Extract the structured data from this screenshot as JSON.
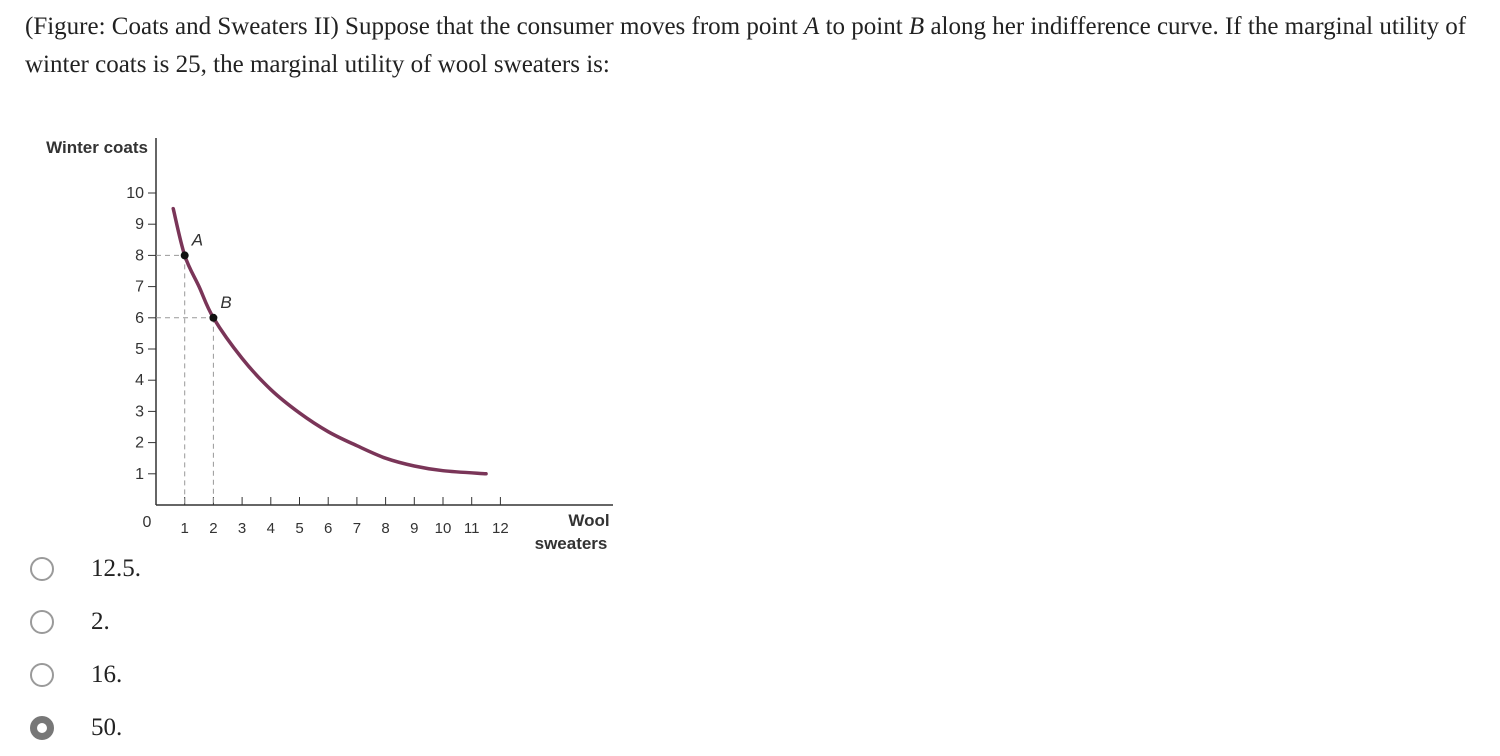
{
  "question": {
    "prefix": "(Figure: Coats and Sweaters II) Suppose that the consumer moves from point ",
    "point_a": "A",
    "mid1": " to point ",
    "point_b": "B",
    "suffix": " along her indifference curve. If the marginal utility of winter coats is 25, the marginal utility of wool sweaters is:"
  },
  "chart_data": {
    "type": "line",
    "ylabel": "Winter coats",
    "xlabel_line1": "Wool",
    "xlabel_line2": "sweaters",
    "origin_label": "0",
    "x_ticks": [
      "1",
      "2",
      "3",
      "4",
      "5",
      "6",
      "7",
      "8",
      "9",
      "10",
      "11",
      "12"
    ],
    "y_ticks": [
      "1",
      "2",
      "3",
      "4",
      "5",
      "6",
      "7",
      "8",
      "9",
      "10"
    ],
    "xlim": [
      0,
      12
    ],
    "ylim": [
      0,
      10
    ],
    "series": [
      {
        "points": [
          {
            "x": 0.6,
            "y": 9.5
          },
          {
            "x": 1,
            "y": 8
          },
          {
            "x": 1.5,
            "y": 7
          },
          {
            "x": 2,
            "y": 6
          },
          {
            "x": 3,
            "y": 4.7
          },
          {
            "x": 4,
            "y": 3.7
          },
          {
            "x": 5,
            "y": 2.95
          },
          {
            "x": 6,
            "y": 2.35
          },
          {
            "x": 7,
            "y": 1.9
          },
          {
            "x": 8,
            "y": 1.5
          },
          {
            "x": 9,
            "y": 1.25
          },
          {
            "x": 10,
            "y": 1.1
          },
          {
            "x": 11.5,
            "y": 1.0
          }
        ],
        "color": "#7a3558"
      }
    ],
    "marked_points": [
      {
        "label": "A",
        "x": 1,
        "y": 8
      },
      {
        "label": "B",
        "x": 2,
        "y": 6
      }
    ],
    "grid": false
  },
  "options": [
    {
      "label": "12.5.",
      "selected": false
    },
    {
      "label": "2.",
      "selected": false
    },
    {
      "label": "16.",
      "selected": false
    },
    {
      "label": "50.",
      "selected": true
    }
  ]
}
